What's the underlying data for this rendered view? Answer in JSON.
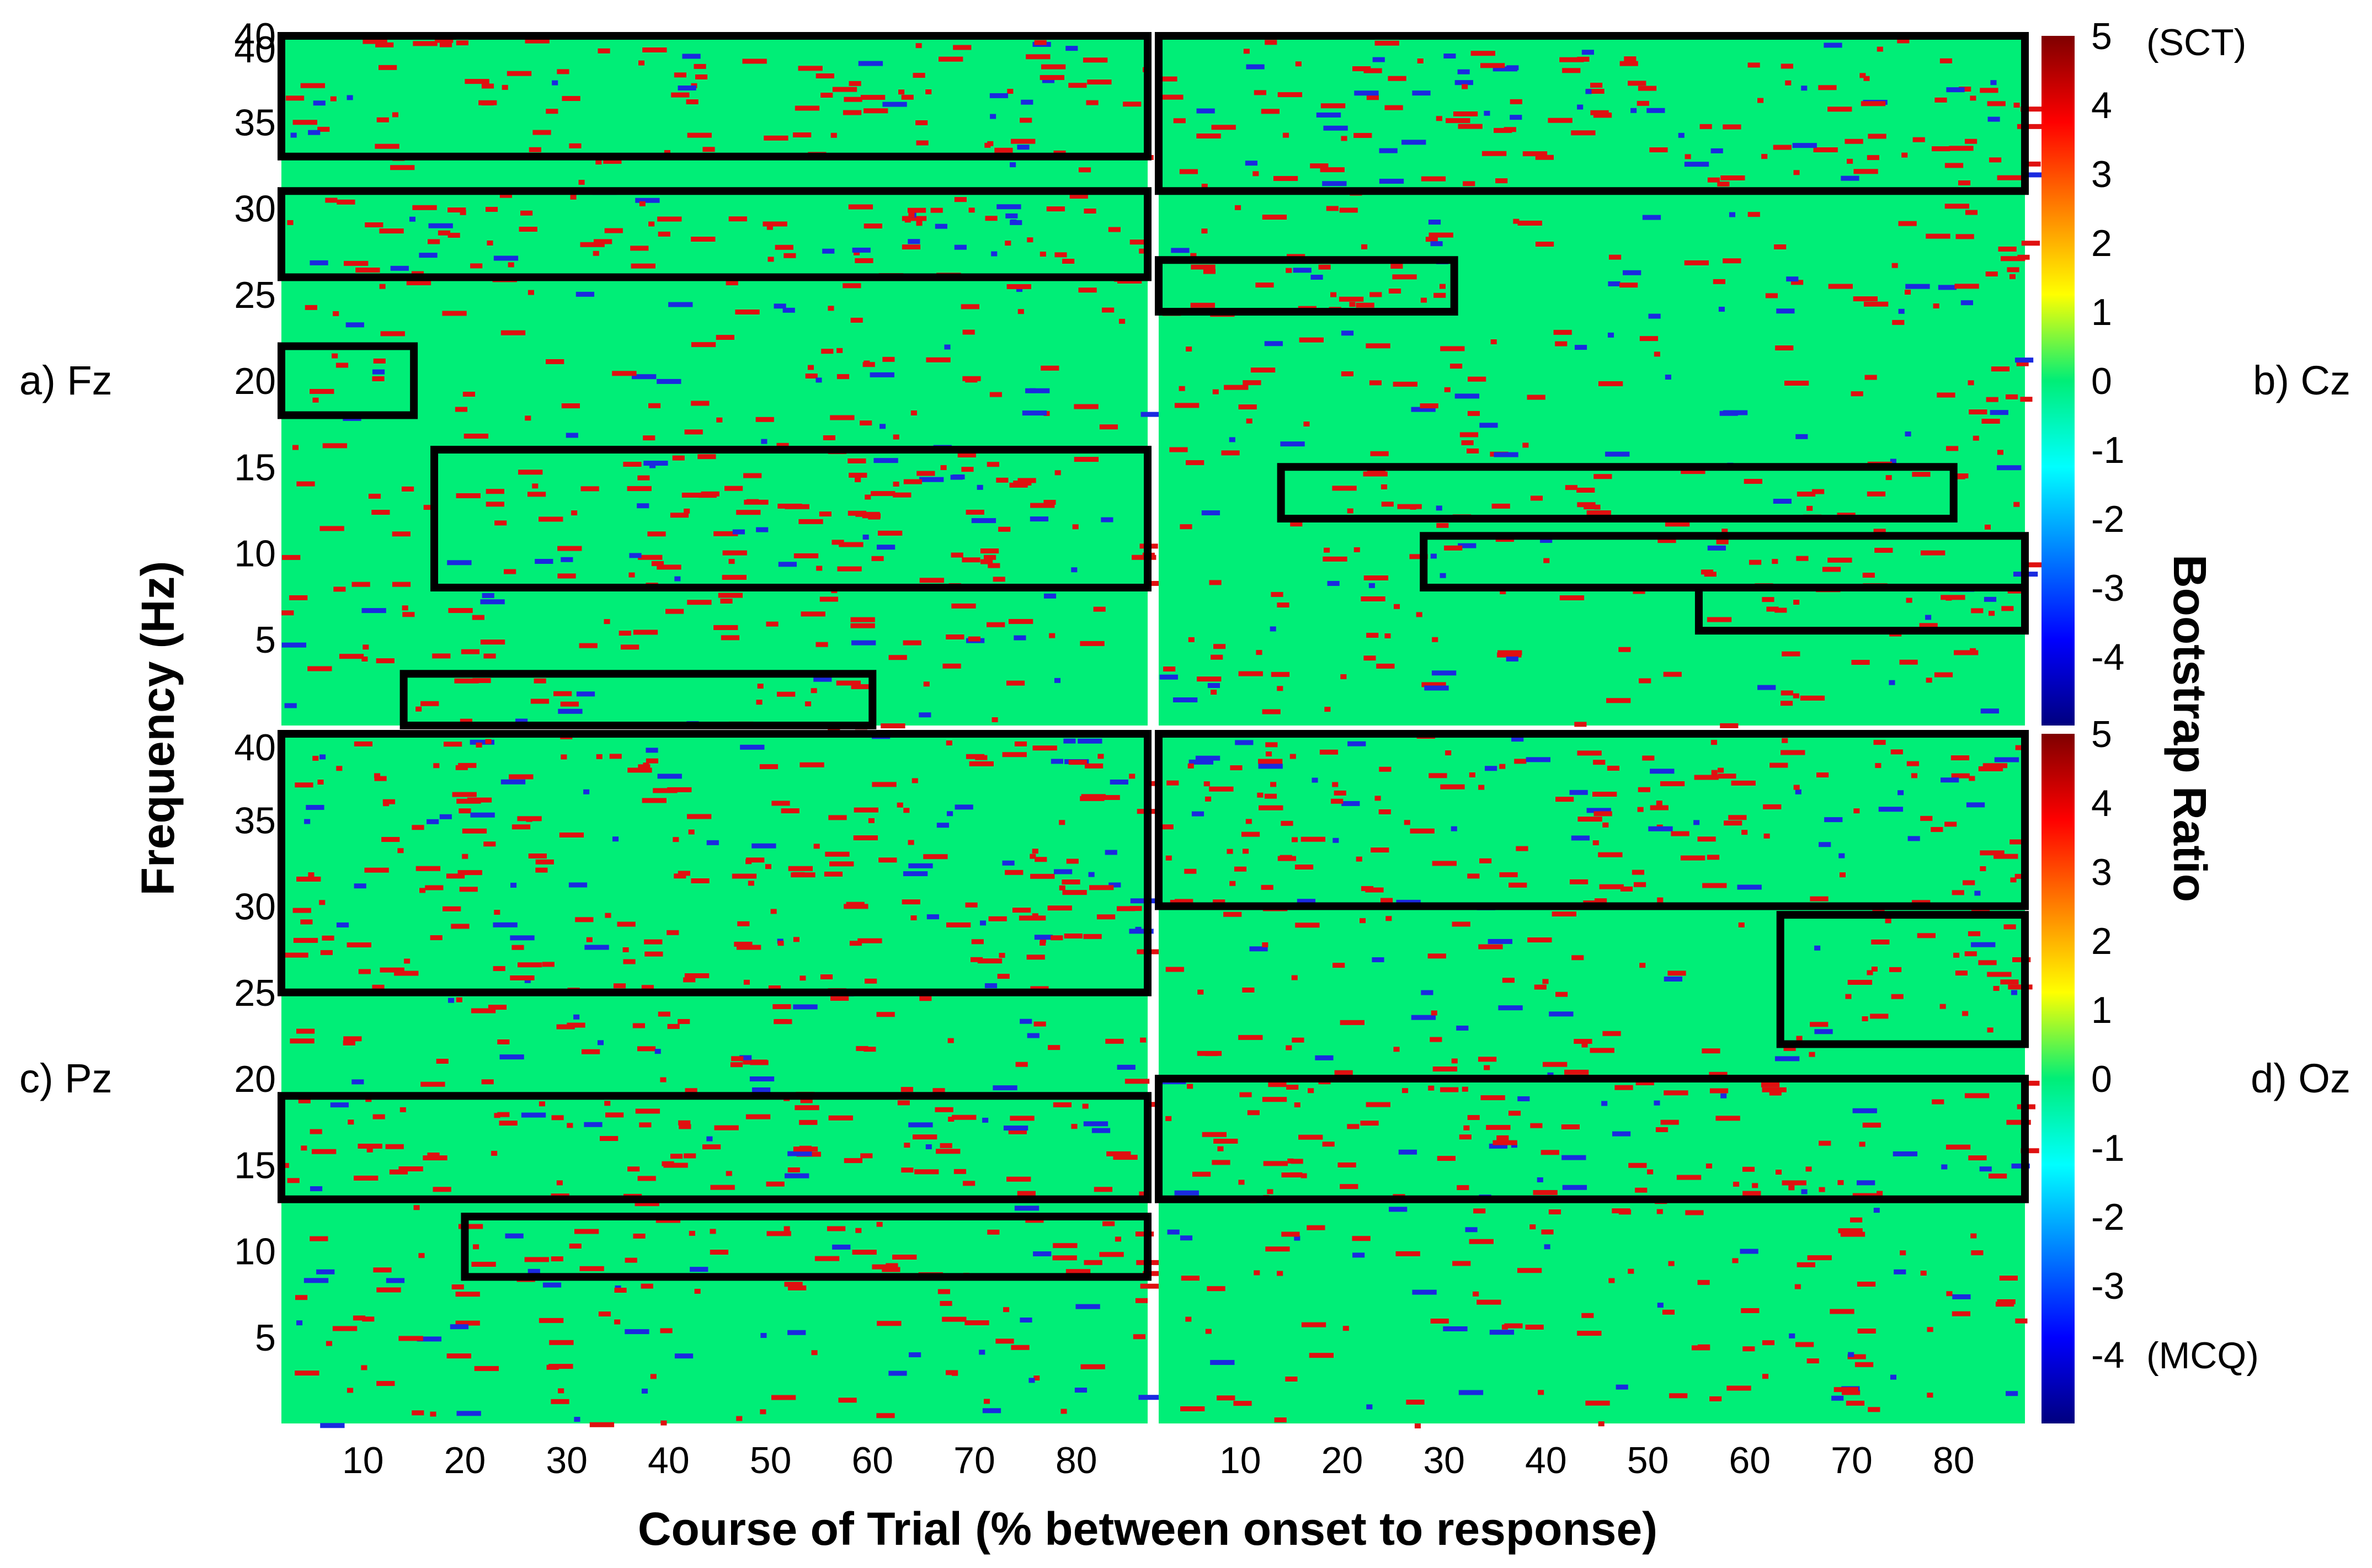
{
  "chart_data": {
    "type": "heatmap",
    "xlabel": "Course of Trial (% between onset to response)",
    "ylabel": "Frequency (Hz)",
    "colorbar_label": "Bootstrap Ratio",
    "colorbar_top_annotation": "(SCT)",
    "colorbar_bottom_annotation": "(MCQ)",
    "x_ticks": [
      "10",
      "20",
      "30",
      "40",
      "50",
      "60",
      "70",
      "80"
    ],
    "y_ticks": [
      "5",
      "10",
      "15",
      "20",
      "25",
      "30",
      "35",
      "40"
    ],
    "colorbar_ticks": [
      "5",
      "4",
      "3",
      "2",
      "1",
      "0",
      "-1",
      "-2",
      "-3",
      "-4"
    ],
    "xlim": [
      2,
      87
    ],
    "ylim": [
      0,
      40
    ],
    "clim": [
      -5,
      5
    ],
    "colormap": "jet",
    "colors": {
      "background": "#00ee77",
      "positive": "#e01010",
      "negative": "#1a2ae0"
    },
    "panels": [
      {
        "label": "a) Fz",
        "boxes": [
          {
            "x": [
              2,
              87
            ],
            "y": [
              33,
              40
            ]
          },
          {
            "x": [
              2,
              87
            ],
            "y": [
              26,
              31
            ]
          },
          {
            "x": [
              2,
              15
            ],
            "y": [
              18,
              22
            ]
          },
          {
            "x": [
              17,
              87
            ],
            "y": [
              8,
              16
            ]
          },
          {
            "x": [
              14,
              60
            ],
            "y": [
              0,
              3
            ]
          }
        ]
      },
      {
        "label": "b) Cz",
        "boxes": [
          {
            "x": [
              2,
              87
            ],
            "y": [
              31,
              40
            ]
          },
          {
            "x": [
              2,
              31
            ],
            "y": [
              24,
              27
            ]
          },
          {
            "x": [
              14,
              80
            ],
            "y": [
              12,
              15
            ]
          },
          {
            "x": [
              28,
              87
            ],
            "y": [
              8,
              11
            ]
          },
          {
            "x": [
              55,
              87
            ],
            "y": [
              5.5,
              8
            ]
          }
        ]
      },
      {
        "label": "c) Pz",
        "boxes": [
          {
            "x": [
              2,
              87
            ],
            "y": [
              25,
              40
            ]
          },
          {
            "x": [
              2,
              87
            ],
            "y": [
              13,
              19
            ]
          },
          {
            "x": [
              20,
              87
            ],
            "y": [
              8.5,
              12
            ]
          }
        ]
      },
      {
        "label": "d) Oz",
        "boxes": [
          {
            "x": [
              2,
              87
            ],
            "y": [
              30,
              40
            ]
          },
          {
            "x": [
              63,
              87
            ],
            "y": [
              22,
              29.5
            ]
          },
          {
            "x": [
              2,
              87
            ],
            "y": [
              13,
              20
            ]
          }
        ]
      }
    ]
  }
}
